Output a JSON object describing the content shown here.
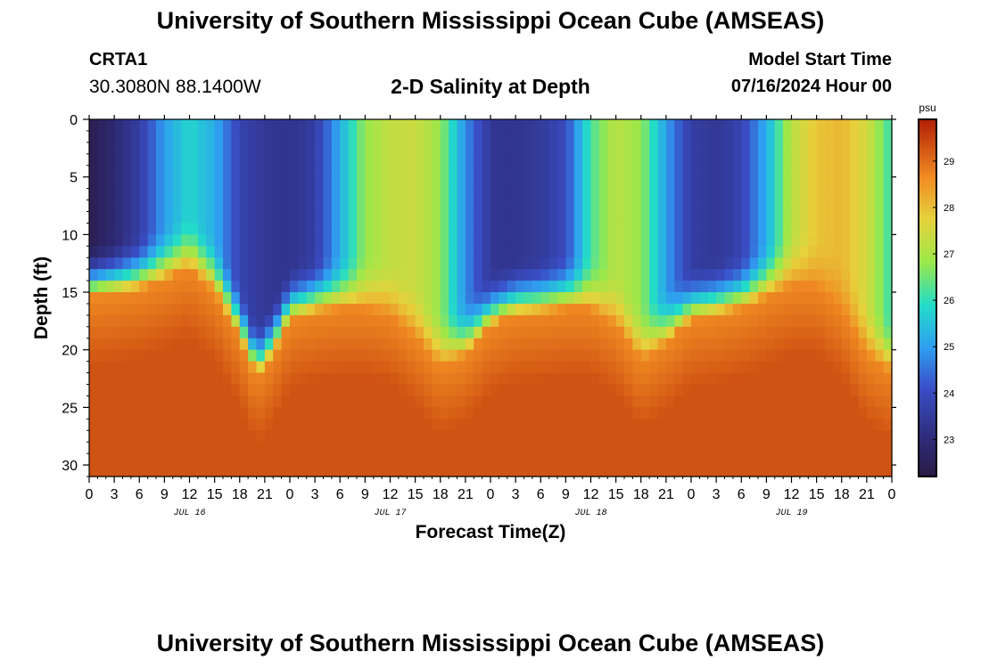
{
  "page": {
    "title": "University of Southern Mississippi Ocean Cube (AMSEAS)",
    "title_repeat": "University of Southern Mississippi Ocean Cube (AMSEAS)",
    "station": {
      "name": "CRTA1",
      "coordinates": "30.3080N  88.1400W"
    },
    "model_start_label": "Model Start Time",
    "model_start_value": "07/16/2024 Hour 00"
  },
  "chart_data": {
    "type": "heatmap",
    "title": "2-D Salinity at Depth",
    "xlabel": "Forecast Time(Z)",
    "ylabel": "Depth (ft)",
    "x_range_hours": [
      0,
      96
    ],
    "x_tick_step_hours": 3,
    "x_tick_labels": [
      "0",
      "3",
      "6",
      "9",
      "12",
      "15",
      "18",
      "21",
      "0",
      "3",
      "6",
      "9",
      "12",
      "15",
      "18",
      "21",
      "0",
      "3",
      "6",
      "9",
      "12",
      "15",
      "18",
      "21",
      "0",
      "3",
      "6",
      "9",
      "12",
      "15",
      "18",
      "21",
      "0"
    ],
    "date_labels": [
      {
        "label": "JUL 16",
        "hour": 12
      },
      {
        "label": "JUL 17",
        "hour": 36
      },
      {
        "label": "JUL 18",
        "hour": 60
      },
      {
        "label": "JUL 19",
        "hour": 84
      }
    ],
    "y_range_ft": [
      0,
      31
    ],
    "y_ticks": [
      0,
      5,
      10,
      15,
      20,
      25,
      30
    ],
    "colorbar": {
      "unit": "psu",
      "range": [
        22.2,
        29.9
      ],
      "ticks": [
        23,
        24,
        25,
        26,
        27,
        28,
        29
      ]
    },
    "fresh_layer_depth_ft": [
      {
        "hour": 0,
        "depth": 15.5
      },
      {
        "hour": 3,
        "depth": 15.2
      },
      {
        "hour": 6,
        "depth": 14.8
      },
      {
        "hour": 9,
        "depth": 14.0
      },
      {
        "hour": 12,
        "depth": 13.0
      },
      {
        "hour": 15,
        "depth": 15.0
      },
      {
        "hour": 18,
        "depth": 19.0
      },
      {
        "hour": 20,
        "depth": 22.5
      },
      {
        "hour": 22,
        "depth": 20.5
      },
      {
        "hour": 24,
        "depth": 17.5
      },
      {
        "hour": 27,
        "depth": 16.8
      },
      {
        "hour": 30,
        "depth": 16.5
      },
      {
        "hour": 33,
        "depth": 16.5
      },
      {
        "hour": 36,
        "depth": 17.0
      },
      {
        "hour": 39,
        "depth": 19.0
      },
      {
        "hour": 42,
        "depth": 21.5
      },
      {
        "hour": 45,
        "depth": 20.5
      },
      {
        "hour": 48,
        "depth": 18.0
      },
      {
        "hour": 51,
        "depth": 17.0
      },
      {
        "hour": 54,
        "depth": 16.8
      },
      {
        "hour": 57,
        "depth": 16.5
      },
      {
        "hour": 60,
        "depth": 16.5
      },
      {
        "hour": 63,
        "depth": 18.0
      },
      {
        "hour": 66,
        "depth": 21.0
      },
      {
        "hour": 69,
        "depth": 19.5
      },
      {
        "hour": 72,
        "depth": 17.5
      },
      {
        "hour": 75,
        "depth": 17.0
      },
      {
        "hour": 78,
        "depth": 16.5
      },
      {
        "hour": 81,
        "depth": 15.5
      },
      {
        "hour": 84,
        "depth": 14.5
      },
      {
        "hour": 87,
        "depth": 14.5
      },
      {
        "hour": 90,
        "depth": 16.5
      },
      {
        "hour": 93,
        "depth": 20.5
      },
      {
        "hour": 96,
        "depth": 22.0
      }
    ],
    "surface_salinity_psu": [
      {
        "hour": 0,
        "value": 22.4
      },
      {
        "hour": 3,
        "value": 22.9
      },
      {
        "hour": 6,
        "value": 23.6
      },
      {
        "hour": 9,
        "value": 25.0
      },
      {
        "hour": 12,
        "value": 25.8
      },
      {
        "hour": 15,
        "value": 25.2
      },
      {
        "hour": 18,
        "value": 23.8
      },
      {
        "hour": 21,
        "value": 23.4
      },
      {
        "hour": 24,
        "value": 23.3
      },
      {
        "hour": 27,
        "value": 23.6
      },
      {
        "hour": 30,
        "value": 25.2
      },
      {
        "hour": 33,
        "value": 26.8
      },
      {
        "hour": 36,
        "value": 27.3
      },
      {
        "hour": 39,
        "value": 27.4
      },
      {
        "hour": 42,
        "value": 26.8
      },
      {
        "hour": 45,
        "value": 24.8
      },
      {
        "hour": 48,
        "value": 23.4
      },
      {
        "hour": 51,
        "value": 23.3
      },
      {
        "hour": 54,
        "value": 23.5
      },
      {
        "hour": 57,
        "value": 24.0
      },
      {
        "hour": 60,
        "value": 26.2
      },
      {
        "hour": 63,
        "value": 27.2
      },
      {
        "hour": 66,
        "value": 26.8
      },
      {
        "hour": 69,
        "value": 25.0
      },
      {
        "hour": 72,
        "value": 23.6
      },
      {
        "hour": 75,
        "value": 23.4
      },
      {
        "hour": 78,
        "value": 23.8
      },
      {
        "hour": 81,
        "value": 25.2
      },
      {
        "hour": 84,
        "value": 27.2
      },
      {
        "hour": 87,
        "value": 27.9
      },
      {
        "hour": 90,
        "value": 28.1
      },
      {
        "hour": 93,
        "value": 27.5
      },
      {
        "hour": 96,
        "value": 26.0
      }
    ],
    "bottom_salinity_psu": 29.3
  }
}
